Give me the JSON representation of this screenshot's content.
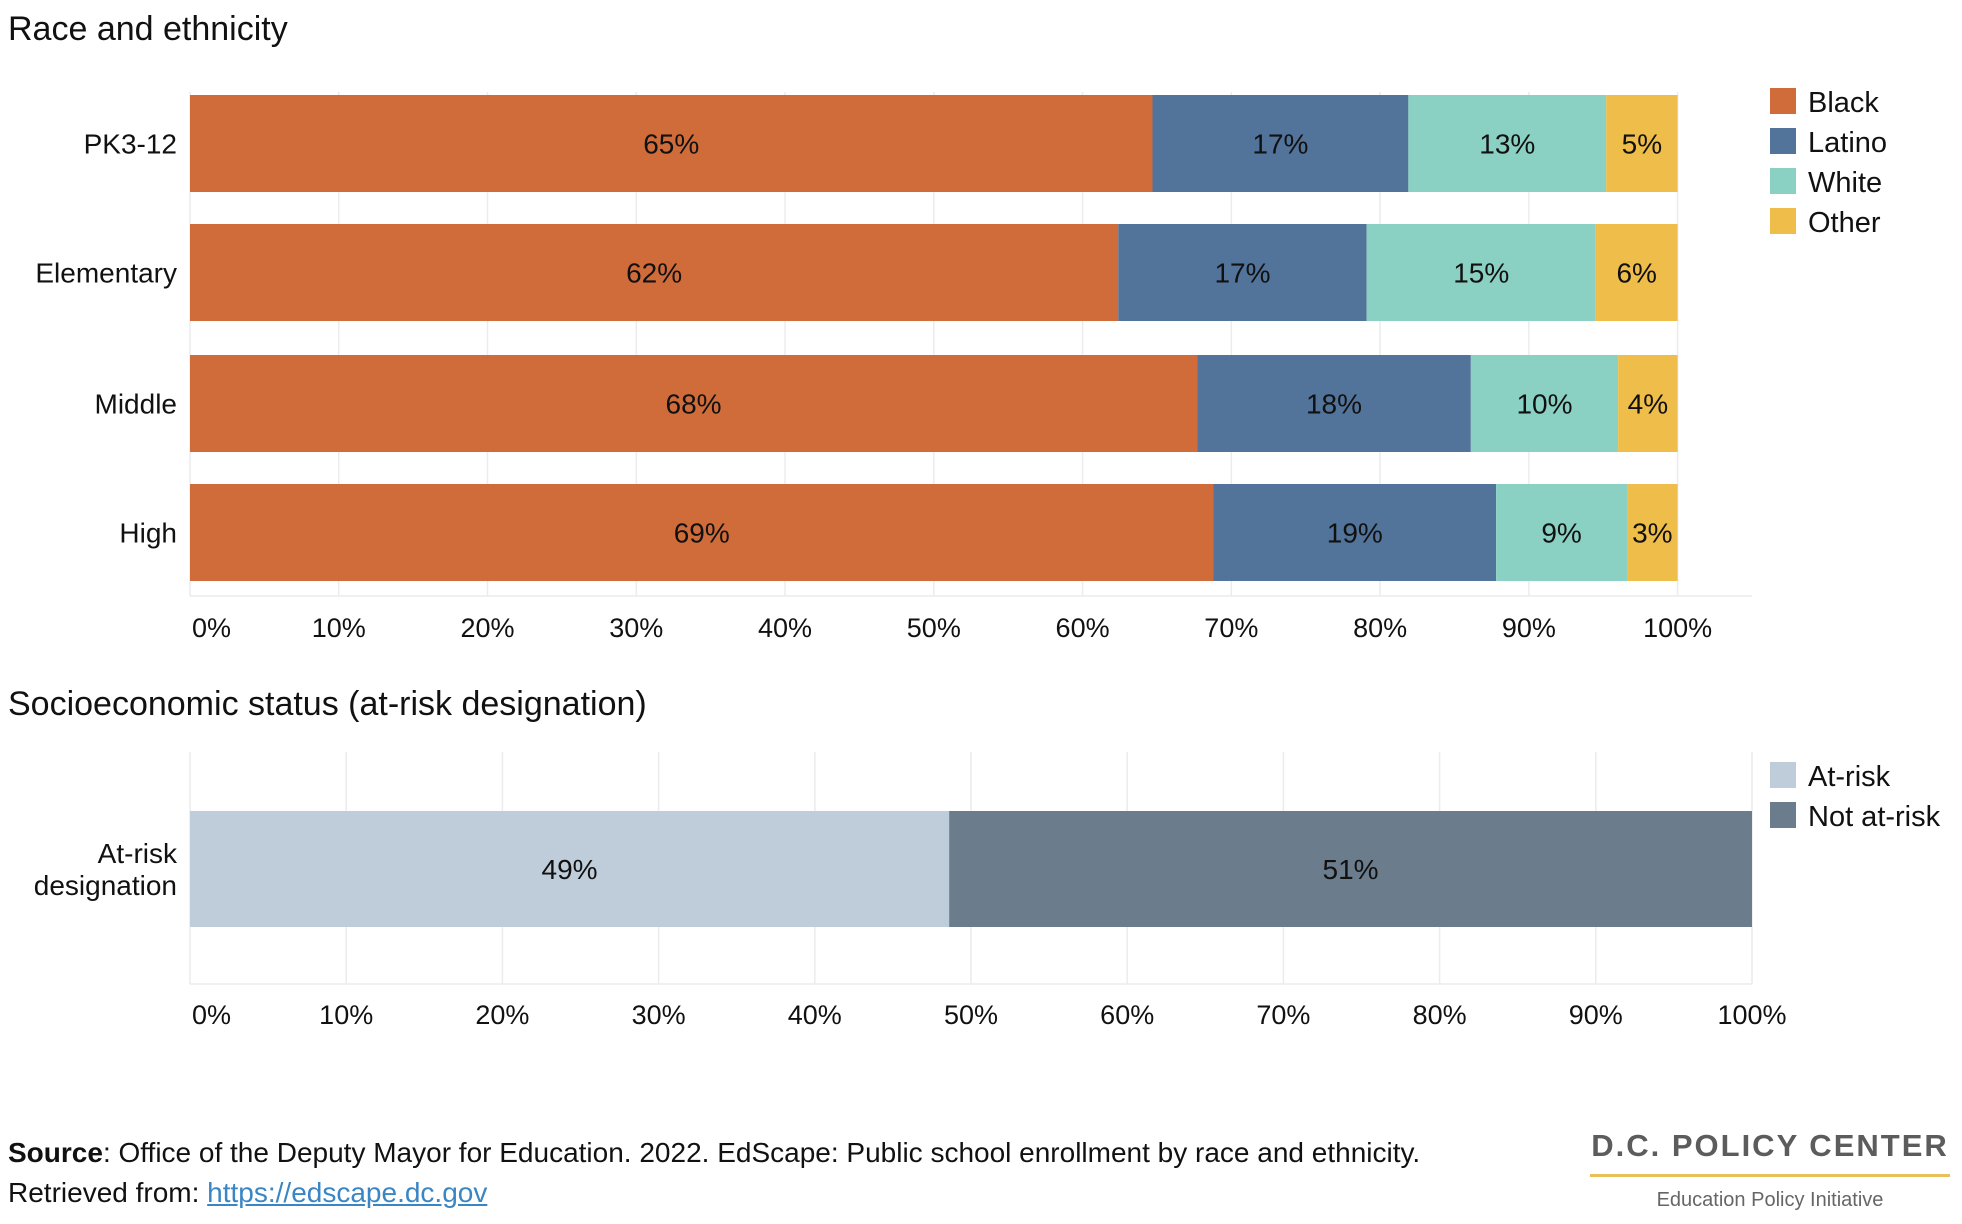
{
  "chart_data": [
    {
      "type": "bar",
      "orientation": "horizontal",
      "stacked": true,
      "title": "Race and ethnicity",
      "categories": [
        "PK3-12",
        "Elementary",
        "Middle",
        "High"
      ],
      "series": [
        {
          "name": "Black",
          "color": "#d06c3a",
          "values": [
            64.7,
            62.4,
            67.7,
            68.8
          ],
          "labels": [
            "65%",
            "62%",
            "68%",
            "69%"
          ]
        },
        {
          "name": "Latino",
          "color": "#52739a",
          "values": [
            17.2,
            16.7,
            18.4,
            19.0
          ],
          "labels": [
            "17%",
            "17%",
            "18%",
            "19%"
          ]
        },
        {
          "name": "White",
          "color": "#8ad0c3",
          "values": [
            13.3,
            15.4,
            9.9,
            8.8
          ],
          "labels": [
            "13%",
            "15%",
            "10%",
            "9%"
          ]
        },
        {
          "name": "Other",
          "color": "#efbd4a",
          "values": [
            4.8,
            5.5,
            4.0,
            3.4
          ],
          "labels": [
            "5%",
            "6%",
            "4%",
            "3%"
          ]
        }
      ],
      "xlim": [
        0,
        105
      ],
      "xticks": [
        "0%",
        "10%",
        "20%",
        "30%",
        "40%",
        "50%",
        "60%",
        "70%",
        "80%",
        "90%",
        "100%"
      ],
      "legend": "right",
      "grid": true
    },
    {
      "type": "bar",
      "orientation": "horizontal",
      "stacked": true,
      "title": "Socioeconomic status (at-risk designation)",
      "categories": [
        "At-risk designation"
      ],
      "series": [
        {
          "name": "At-risk",
          "color": "#bfcddb",
          "values": [
            48.6
          ],
          "labels": [
            "49%"
          ]
        },
        {
          "name": "Not at-risk",
          "color": "#6b7c8c",
          "values": [
            51.4
          ],
          "labels": [
            "51%"
          ]
        }
      ],
      "xlim": [
        0,
        100
      ],
      "xticks": [
        "0%",
        "10%",
        "20%",
        "30%",
        "40%",
        "50%",
        "60%",
        "70%",
        "80%",
        "90%",
        "100%"
      ],
      "legend": "right",
      "grid": true
    }
  ],
  "footer": {
    "source_bold": "Source",
    "source_text": ": Office of the Deputy Mayor for Education. 2022. EdScape: Public school enrollment by race and ethnicity. Retrieved from: ",
    "link_text": "https://edscape.dc.gov"
  },
  "logo": {
    "main": "D.C. POLICY CENTER",
    "sub": "Education Policy Initiative"
  }
}
